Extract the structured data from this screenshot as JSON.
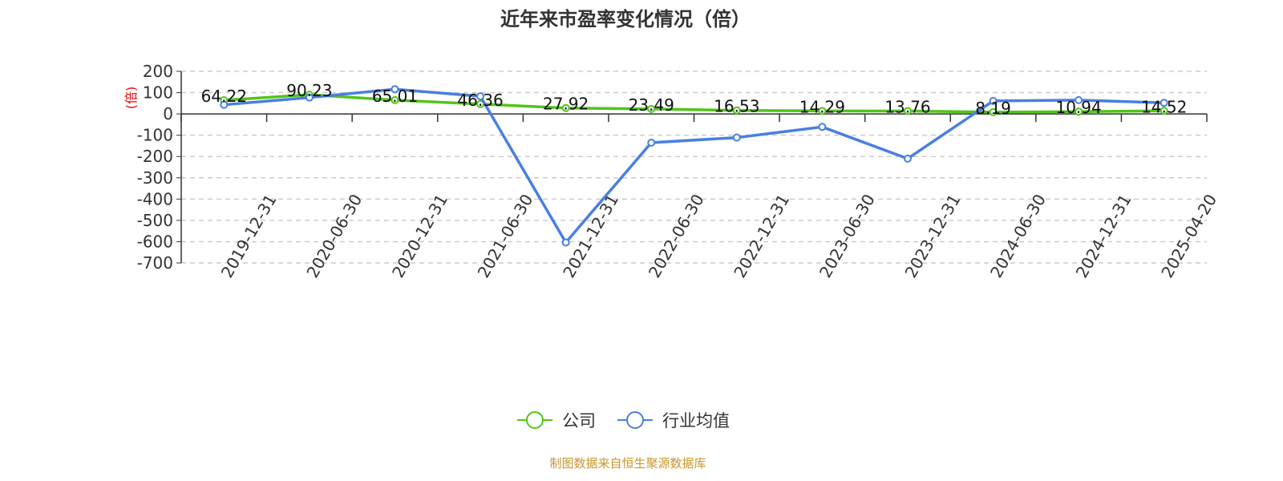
{
  "chart_data": {
    "type": "line",
    "title": "近年来市盈率变化情况（倍）",
    "ylabel": "(倍)",
    "categories": [
      "2019-12-31",
      "2020-06-30",
      "2020-12-31",
      "2021-06-30",
      "2021-12-31",
      "2022-06-30",
      "2022-12-31",
      "2023-06-30",
      "2023-12-31",
      "2024-06-30",
      "2024-12-31",
      "2025-04-20"
    ],
    "ylim": [
      -700,
      200
    ],
    "yticks": [
      200,
      100,
      0,
      -100,
      -200,
      -300,
      -400,
      -500,
      -600,
      -700
    ],
    "grid": true,
    "legend_position": "bottom",
    "series": [
      {
        "name": "公司",
        "color": "#52c41a",
        "values": [
          64.22,
          90.23,
          65.01,
          46.36,
          27.92,
          23.49,
          16.53,
          14.29,
          13.76,
          8.19,
          10.94,
          14.52
        ],
        "labels": [
          "64.22",
          "90.23",
          "65.01",
          "46.36",
          "27.92",
          "23.49",
          "16.53",
          "14.29",
          "13.76",
          "8.19",
          "10.94",
          "14.52"
        ]
      },
      {
        "name": "行业均值",
        "color": "#4a7fe0",
        "values": [
          43,
          77,
          116,
          83,
          -604,
          -135,
          -111,
          -61,
          -210,
          61,
          65,
          52
        ]
      }
    ]
  },
  "footer": {
    "source": "制图数据来自恒生聚源数据库"
  }
}
